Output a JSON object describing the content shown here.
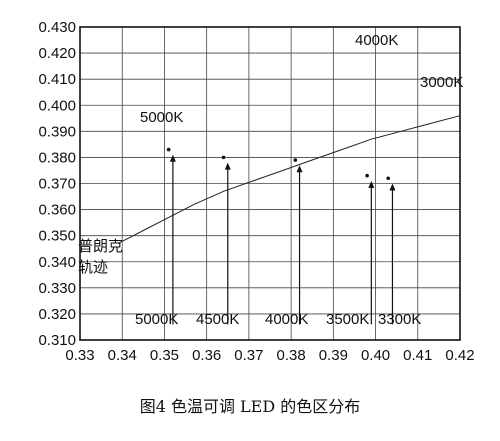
{
  "chart_data": {
    "type": "scatter",
    "title": "",
    "xlabel": "",
    "ylabel": "",
    "xlim": [
      0.33,
      0.42
    ],
    "ylim": [
      0.31,
      0.43
    ],
    "x_ticks": [
      "0.33",
      "0.34",
      "0.35",
      "0.36",
      "0.37",
      "0.38",
      "0.39",
      "0.40",
      "0.41",
      "0.42"
    ],
    "y_ticks": [
      "0.310",
      "0.320",
      "0.330",
      "0.340",
      "0.350",
      "0.360",
      "0.370",
      "0.380",
      "0.390",
      "0.400",
      "0.410",
      "0.420",
      "0.430"
    ],
    "grid": true,
    "points": [
      {
        "x": 0.351,
        "y": 0.383
      },
      {
        "x": 0.364,
        "y": 0.38
      },
      {
        "x": 0.381,
        "y": 0.379
      },
      {
        "x": 0.398,
        "y": 0.373
      },
      {
        "x": 0.403,
        "y": 0.372
      }
    ],
    "planckian_locus": [
      {
        "x": 0.339,
        "y": 0.347
      },
      {
        "x": 0.345,
        "y": 0.352
      },
      {
        "x": 0.351,
        "y": 0.357
      },
      {
        "x": 0.357,
        "y": 0.362
      },
      {
        "x": 0.364,
        "y": 0.367
      },
      {
        "x": 0.371,
        "y": 0.371
      },
      {
        "x": 0.378,
        "y": 0.375
      },
      {
        "x": 0.385,
        "y": 0.379
      },
      {
        "x": 0.392,
        "y": 0.383
      },
      {
        "x": 0.399,
        "y": 0.387
      },
      {
        "x": 0.406,
        "y": 0.39
      },
      {
        "x": 0.413,
        "y": 0.393
      },
      {
        "x": 0.42,
        "y": 0.396
      }
    ],
    "arrows": [
      {
        "x": 0.352,
        "y_from": 0.316,
        "y_to": 0.381
      },
      {
        "x": 0.365,
        "y_from": 0.316,
        "y_to": 0.378
      },
      {
        "x": 0.382,
        "y_from": 0.316,
        "y_to": 0.377
      },
      {
        "x": 0.399,
        "y_from": 0.316,
        "y_to": 0.371
      },
      {
        "x": 0.404,
        "y_from": 0.316,
        "y_to": 0.37
      }
    ],
    "annotations": {
      "cct_top": [
        "5000K",
        "4000K",
        "3000K"
      ],
      "cct_bottom": [
        "5000K",
        "4500K",
        "4000K",
        "3500K",
        "3300K"
      ],
      "locus_label_line1": "普朗克",
      "locus_label_line2": "轨迹"
    },
    "caption": "图4  色温可调 LED 的色区分布"
  }
}
